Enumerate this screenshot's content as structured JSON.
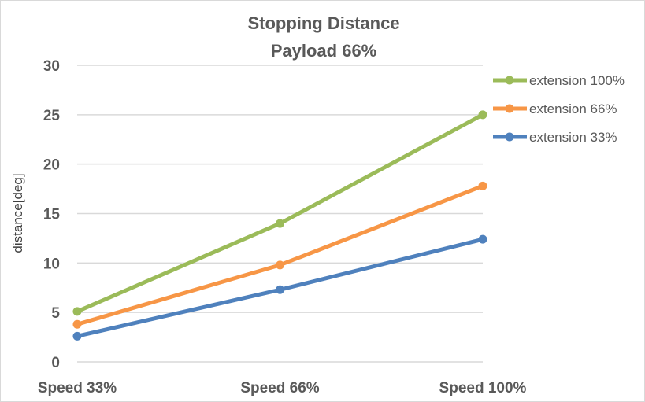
{
  "chart_data": {
    "type": "line",
    "title": [
      "Stopping Distance",
      "Payload 66%"
    ],
    "xlabel": "",
    "ylabel": "distance[deg]",
    "categories": [
      "Speed 33%",
      "Speed 66%",
      "Speed 100%"
    ],
    "ylim": [
      0,
      30
    ],
    "yticks": [
      0,
      5,
      10,
      15,
      20,
      25,
      30
    ],
    "grid": true,
    "legend_position": "right",
    "series": [
      {
        "name": "extension 100%",
        "color": "#9bbb59",
        "values": [
          5.1,
          14.0,
          25.0
        ]
      },
      {
        "name": "extension 66%",
        "color": "#f79646",
        "values": [
          3.8,
          9.8,
          17.8
        ]
      },
      {
        "name": "extension 33%",
        "color": "#4f81bd",
        "values": [
          2.6,
          7.3,
          12.4
        ]
      }
    ]
  }
}
